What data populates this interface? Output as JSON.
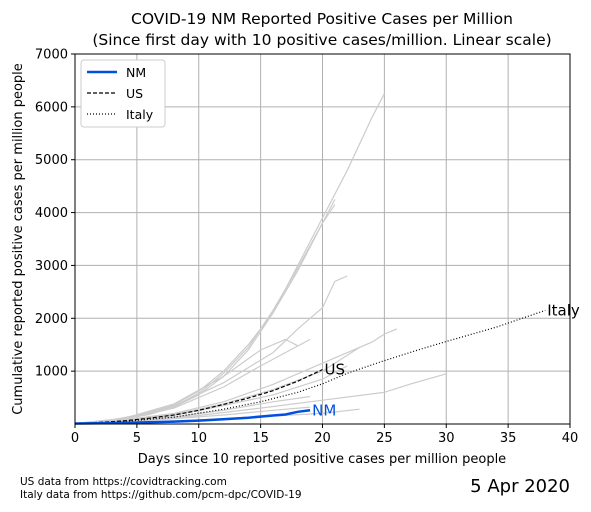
{
  "chart_data": {
    "type": "line",
    "title": "COVID-19 NM Reported Positive Cases per Million",
    "subtitle": "(Since first day with 10 positive cases/million. Linear scale)",
    "xlabel": "Days since 10 reported positive cases per million people",
    "ylabel": "Cumulative reported positive cases per million people",
    "xlim": [
      0,
      40
    ],
    "ylim": [
      0,
      7000
    ],
    "xticks": [
      0,
      5,
      10,
      15,
      20,
      25,
      30,
      35,
      40
    ],
    "yticks": [
      1000,
      2000,
      3000,
      4000,
      5000,
      6000,
      7000
    ],
    "grid": true,
    "legend_position": "top-left",
    "legend": [
      "NM",
      "US",
      "Italy"
    ],
    "series": [
      {
        "name": "NM",
        "color": "#0050e0",
        "style": "solid",
        "end_label": "NM",
        "x": [
          0,
          2,
          4,
          6,
          8,
          10,
          12,
          14,
          16,
          17,
          18,
          19
        ],
        "y": [
          10,
          15,
          22,
          32,
          45,
          65,
          90,
          120,
          160,
          180,
          230,
          260
        ]
      },
      {
        "name": "US",
        "color": "#000000",
        "style": "dashed",
        "end_label": "US",
        "x": [
          0,
          2,
          4,
          6,
          8,
          10,
          12,
          14,
          16,
          17,
          18,
          19,
          20
        ],
        "y": [
          10,
          30,
          60,
          110,
          170,
          260,
          370,
          490,
          630,
          720,
          810,
          920,
          1030
        ]
      },
      {
        "name": "Italy",
        "color": "#000000",
        "style": "dotted",
        "end_label": "Italy",
        "x": [
          0,
          4,
          8,
          12,
          15,
          18,
          20,
          22,
          25,
          28,
          30,
          34,
          38
        ],
        "y": [
          10,
          50,
          130,
          280,
          420,
          600,
          760,
          960,
          1200,
          1420,
          1560,
          1830,
          2150
        ]
      }
    ],
    "background_series_color": "#cccccc",
    "background_series": [
      {
        "x": [
          0,
          3,
          6,
          8,
          10,
          12,
          14,
          16,
          18,
          20,
          22,
          24,
          25
        ],
        "y": [
          10,
          60,
          180,
          320,
          550,
          900,
          1400,
          2100,
          3000,
          3900,
          4800,
          5800,
          6250
        ]
      },
      {
        "x": [
          0,
          3,
          6,
          8,
          10,
          12,
          14,
          16,
          18,
          20,
          21
        ],
        "y": [
          10,
          70,
          200,
          340,
          580,
          960,
          1450,
          2150,
          2950,
          3800,
          4250
        ]
      },
      {
        "x": [
          0,
          3,
          6,
          8,
          10,
          12,
          14,
          16,
          18,
          20,
          21
        ],
        "y": [
          10,
          80,
          210,
          370,
          620,
          1000,
          1500,
          2100,
          2900,
          3800,
          4150
        ]
      },
      {
        "x": [
          0,
          4,
          8,
          12,
          16,
          18,
          19,
          20,
          21,
          22
        ],
        "y": [
          10,
          100,
          350,
          780,
          1350,
          1800,
          2000,
          2200,
          2700,
          2800
        ]
      },
      {
        "x": [
          0,
          4,
          8,
          12,
          15,
          17,
          18
        ],
        "y": [
          10,
          110,
          380,
          900,
          1400,
          1600,
          1480
        ]
      },
      {
        "x": [
          0,
          4,
          8,
          12,
          15,
          17,
          19
        ],
        "y": [
          10,
          90,
          300,
          700,
          1100,
          1350,
          1600
        ]
      },
      {
        "x": [
          0,
          4,
          8,
          12,
          16,
          20,
          24,
          25,
          26
        ],
        "y": [
          10,
          80,
          200,
          420,
          750,
          1150,
          1550,
          1700,
          1800
        ]
      },
      {
        "x": [
          0,
          4,
          8,
          12,
          16,
          20,
          23
        ],
        "y": [
          10,
          60,
          180,
          380,
          650,
          1000,
          1450
        ]
      },
      {
        "x": [
          0,
          5,
          10,
          15,
          20,
          25,
          27,
          30
        ],
        "y": [
          10,
          60,
          160,
          300,
          450,
          600,
          750,
          950
        ]
      },
      {
        "x": [
          0,
          4,
          8,
          12,
          16,
          20,
          22
        ],
        "y": [
          10,
          60,
          160,
          350,
          550,
          850,
          1100
        ]
      },
      {
        "x": [
          0,
          4,
          8,
          12,
          16,
          19
        ],
        "y": [
          10,
          40,
          100,
          170,
          260,
          320
        ]
      },
      {
        "x": [
          0,
          5,
          10,
          15,
          20,
          23
        ],
        "y": [
          10,
          30,
          80,
          140,
          200,
          280
        ]
      },
      {
        "x": [
          0,
          4,
          8,
          12,
          16,
          19
        ],
        "y": [
          10,
          50,
          130,
          260,
          420,
          520
        ]
      }
    ]
  },
  "footer": {
    "sources": [
      "US data from https://covidtracking.com",
      "Italy data from https://github.com/pcm-dpc/COVID-19"
    ],
    "date": "5 Apr 2020"
  }
}
